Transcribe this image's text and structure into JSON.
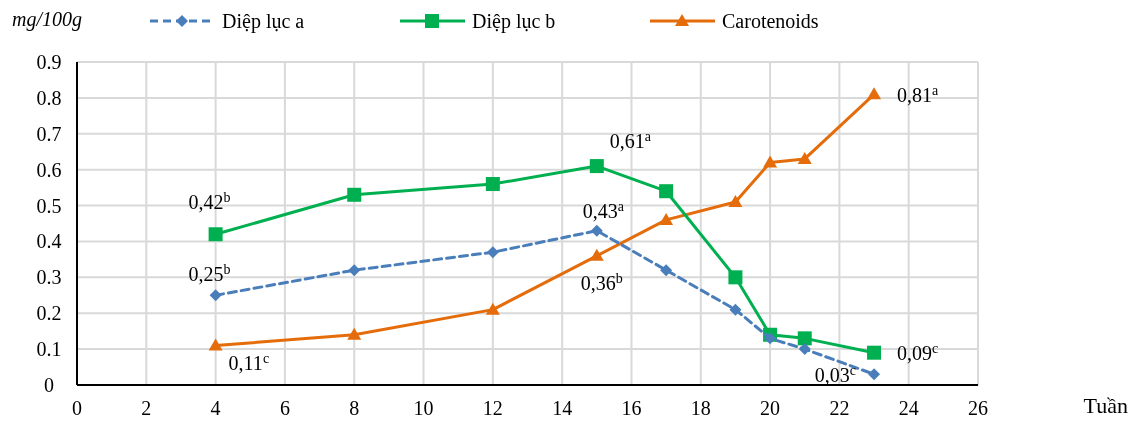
{
  "chart_data": {
    "type": "line",
    "ylabel": "mg/100g",
    "xlabel": "Tuần",
    "x": [
      4,
      8,
      12,
      15,
      17,
      19,
      20,
      21,
      23
    ],
    "xlim": [
      0,
      26
    ],
    "xticks": [
      0,
      2,
      4,
      6,
      8,
      10,
      12,
      14,
      16,
      18,
      20,
      22,
      24,
      26
    ],
    "ylim": [
      0,
      0.9
    ],
    "yticks": [
      0,
      0.1,
      0.2,
      0.3,
      0.4,
      0.5,
      0.6,
      0.7,
      0.8,
      0.9
    ],
    "grid": true,
    "legend": "top",
    "series": [
      {
        "name": "Diệp lục a",
        "color": "#4a7ebb",
        "marker": "diamond",
        "line_style": "dashed",
        "values": [
          0.25,
          0.32,
          0.37,
          0.43,
          0.32,
          0.21,
          0.13,
          0.1,
          0.03
        ]
      },
      {
        "name": "Diệp lục b",
        "color": "#00b050",
        "marker": "square",
        "line_style": "solid",
        "values": [
          0.42,
          0.53,
          0.56,
          0.61,
          0.54,
          0.3,
          0.14,
          0.13,
          0.09
        ]
      },
      {
        "name": "Carotenoids",
        "color": "#e46c0a",
        "marker": "triangle",
        "line_style": "solid",
        "values": [
          0.11,
          0.14,
          0.21,
          0.36,
          0.46,
          0.51,
          0.62,
          0.63,
          0.81
        ]
      }
    ],
    "annotations": [
      {
        "text": "0,42$^{b}$",
        "x": 4,
        "y": 0.42
      },
      {
        "text": "0,25$^{b}$",
        "x": 4,
        "y": 0.25
      },
      {
        "text": "0,11$^{c}$",
        "x": 4,
        "y": 0.11
      },
      {
        "text": "0,61$^{a}$",
        "x": 15,
        "y": 0.61
      },
      {
        "text": "0,43$^{a}$",
        "x": 15,
        "y": 0.43
      },
      {
        "text": "0,36$^{b}$",
        "x": 15,
        "y": 0.36
      },
      {
        "text": "0,81$^{a}$",
        "x": 23,
        "y": 0.81
      },
      {
        "text": "0,09$^{c}$",
        "x": 23,
        "y": 0.09
      },
      {
        "text": "0,03$^{c}$",
        "x": 23,
        "y": 0.03
      }
    ]
  }
}
